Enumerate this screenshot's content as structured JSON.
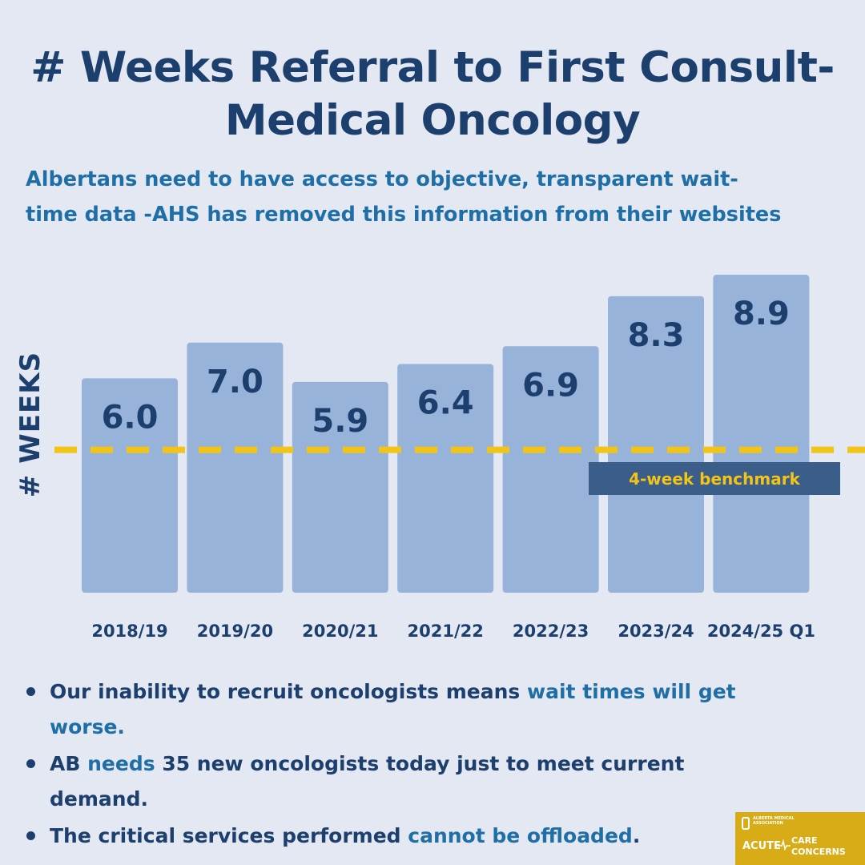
{
  "title": {
    "line1": "# Weeks Referral to First Consult-",
    "line2": "Medical Oncology"
  },
  "subtitle": {
    "line1": "Albertans need to have access to objective, transparent wait-",
    "line2": "time data -AHS has removed this information from their websites"
  },
  "chart_data": {
    "type": "bar",
    "categories": [
      "2018/19",
      "2019/20",
      "2020/21",
      "2021/22",
      "2022/23",
      "2023/24",
      "2024/25 Q1"
    ],
    "values": [
      6.0,
      7.0,
      5.9,
      6.4,
      6.9,
      8.3,
      8.9
    ],
    "value_labels": [
      "6.0",
      "7.0",
      "5.9",
      "6.4",
      "6.9",
      "8.3",
      "8.9"
    ],
    "ylabel": "# WEEKS",
    "xlabel": "",
    "benchmark": {
      "value": 4,
      "label": "4-week benchmark",
      "color": "#f2c418"
    },
    "bar_color": "#97b3d9",
    "grid": false
  },
  "bullets": [
    {
      "parts": [
        "Our inability to recruit oncologists means ",
        "wait times will get worse."
      ]
    },
    {
      "parts": [
        "AB ",
        "needs",
        " 35 new oncologists today just to meet current demand."
      ]
    },
    {
      "parts": [
        "The critical services performed ",
        "cannot be offloaded",
        "."
      ]
    }
  ],
  "logo": {
    "org": "ALBERTA MEDICAL ASSOCIATION",
    "acute": "ACUTE",
    "care": "CARE",
    "concerns": "CONCERNS"
  },
  "colors": {
    "background": "#e3e8f2",
    "title": "#1d3f6e",
    "accent": "#1f6fa6",
    "benchmark": "#f2c418",
    "logo": "#d8ac16"
  }
}
